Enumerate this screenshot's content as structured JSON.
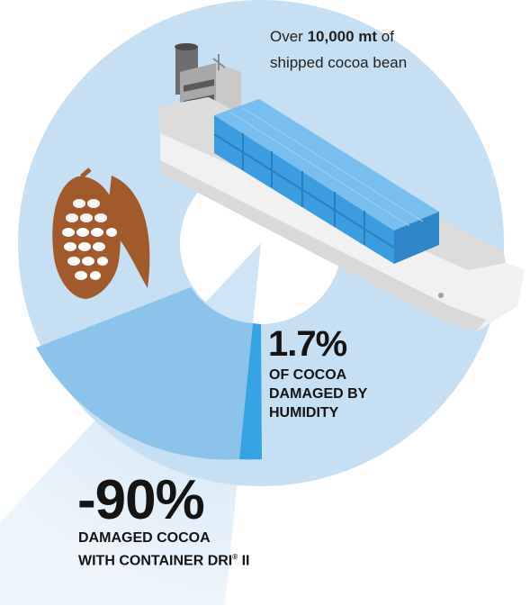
{
  "colors": {
    "ring": "#c7dff2",
    "wedge_light": "#e2eef9",
    "wedge_mid": "#8ec5ec",
    "wedge_bright": "#3aa7e6",
    "container_blue": "#3fa1e3",
    "ship_hull": "#f1f1f1",
    "cocoa_brown": "#a05a2c"
  },
  "icons": [
    "cargo-ship-icon",
    "cocoa-pod-icon"
  ],
  "intro": {
    "prefix": "Over ",
    "amount": "10,000 mt",
    "suffix": " of",
    "line2": "shipped cocoa bean"
  },
  "humidity_stat": {
    "value": "1.7%",
    "caption_lines": [
      "OF COCOA",
      "DAMAGED BY",
      "HUMIDITY"
    ]
  },
  "reduction_stat": {
    "value": "-90%",
    "caption_line1": "DAMAGED COCOA",
    "caption_line2_prefix": "WITH CONTAINER DRI",
    "registered_mark": "®",
    "caption_line2_suffix": " II"
  }
}
